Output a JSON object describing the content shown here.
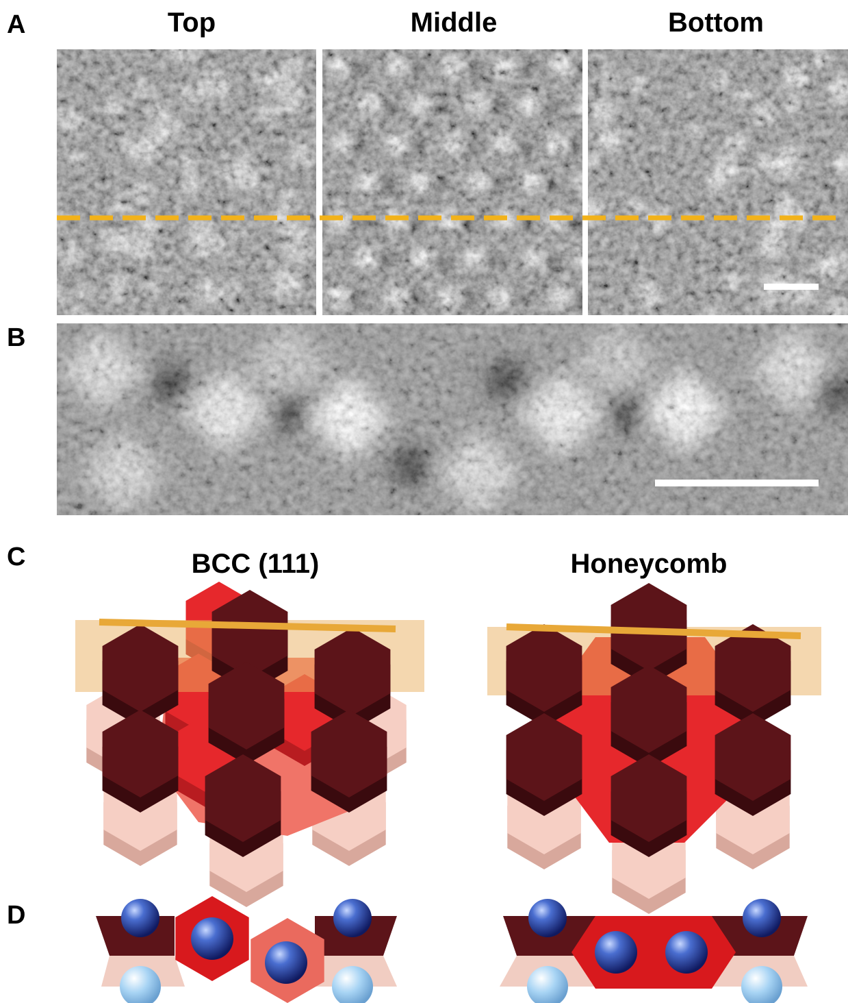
{
  "panel_labels": [
    "A",
    "B",
    "C",
    "D"
  ],
  "panel_a": {
    "titles": [
      "Top",
      "Middle",
      "Bottom"
    ]
  },
  "panel_c": {
    "titles": [
      "BCC (111)",
      "Honeycomb"
    ]
  }
}
